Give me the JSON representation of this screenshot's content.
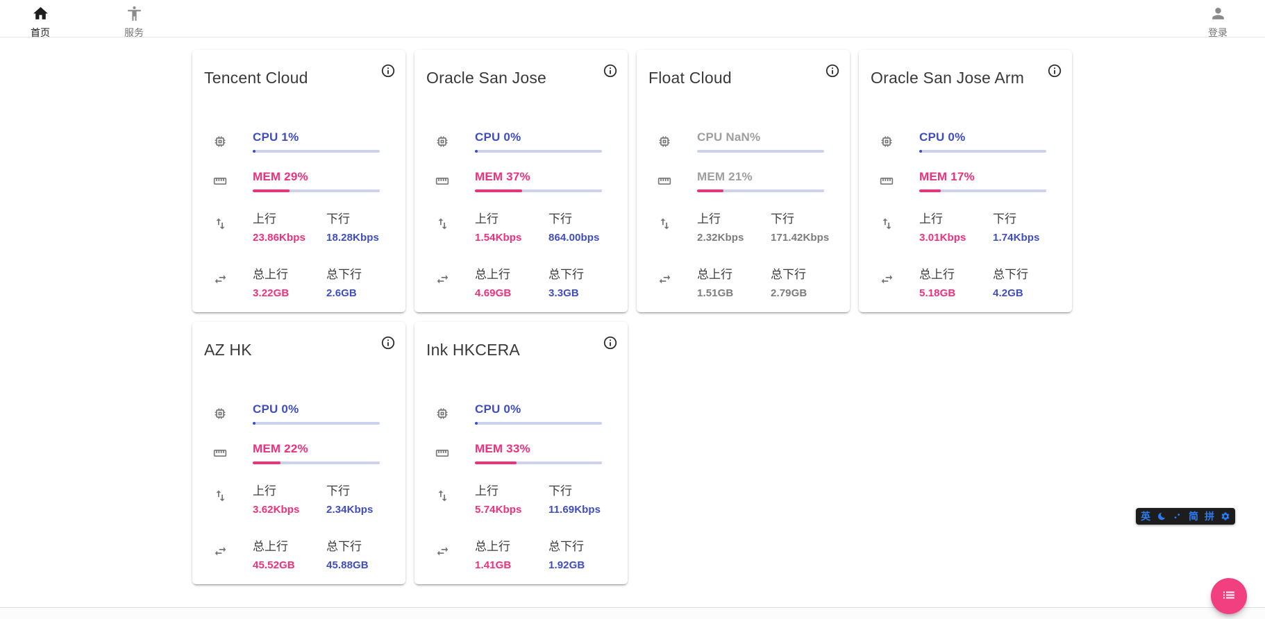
{
  "navbar": {
    "home": "首页",
    "services": "服务",
    "login": "登录",
    "icons": [
      "home-icon",
      "accessibility-icon",
      "person-icon"
    ]
  },
  "labels": {
    "cpu": "CPU",
    "mem": "MEM",
    "upload": "上行",
    "download": "下行",
    "total_upload": "总上行",
    "total_download": "总下行"
  },
  "colors": {
    "pink": "#f1307b",
    "blue": "#3e4dc2",
    "bar_track": "#ccd2ee",
    "fab_pink": "#f23f80",
    "ime_blue": "#2b7bf3"
  },
  "servers": [
    {
      "name": "Tencent Cloud",
      "cpu": "1%",
      "cpu_pct": 1,
      "mem": "29%",
      "mem_pct": 29,
      "upload": "23.86Kbps",
      "download": "18.28Kbps",
      "total_upload": "3.22GB",
      "total_download": "2.6GB",
      "online": true
    },
    {
      "name": "Oracle San Jose",
      "cpu": "0%",
      "cpu_pct": 0,
      "mem": "37%",
      "mem_pct": 37,
      "upload": "1.54Kbps",
      "download": "864.00bps",
      "total_upload": "4.69GB",
      "total_download": "3.3GB",
      "online": true
    },
    {
      "name": "Float Cloud",
      "cpu": "NaN%",
      "cpu_pct": null,
      "mem": "21%",
      "mem_pct": 21,
      "upload": "2.32Kbps",
      "download": "171.42Kbps",
      "total_upload": "1.51GB",
      "total_download": "2.79GB",
      "online": false
    },
    {
      "name": "Oracle San Jose Arm",
      "cpu": "0%",
      "cpu_pct": 0,
      "mem": "17%",
      "mem_pct": 17,
      "upload": "3.01Kbps",
      "download": "1.74Kbps",
      "total_upload": "5.18GB",
      "total_download": "4.2GB",
      "online": true
    },
    {
      "name": "AZ HK",
      "cpu": "0%",
      "cpu_pct": 0,
      "mem": "22%",
      "mem_pct": 22,
      "upload": "3.62Kbps",
      "download": "2.34Kbps",
      "total_upload": "45.52GB",
      "total_download": "45.88GB",
      "online": true
    },
    {
      "name": "Ink HKCERA",
      "cpu": "0%",
      "cpu_pct": 0,
      "mem": "33%",
      "mem_pct": 33,
      "upload": "5.74Kbps",
      "download": "11.69Kbps",
      "total_upload": "1.41GB",
      "total_download": "1.92GB",
      "online": true
    }
  ],
  "ime_bar": {
    "language": "英",
    "charset": "简",
    "layout": "拼",
    "icons": [
      "moon-icon",
      "dots-icon",
      "settings-icon"
    ]
  },
  "fab": {
    "icon": "list-icon"
  }
}
